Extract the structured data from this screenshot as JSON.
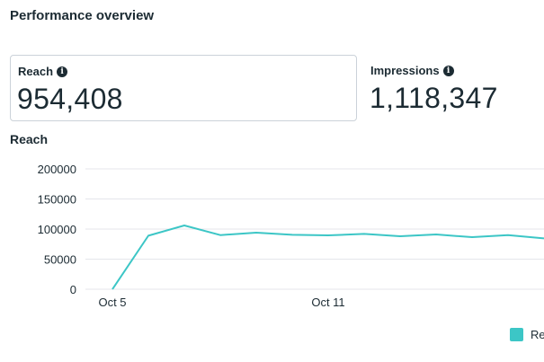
{
  "header": {
    "title": "Performance overview"
  },
  "metrics": [
    {
      "label": "Reach",
      "info_icon": "info-icon",
      "value": "954,408",
      "selected": true
    },
    {
      "label": "Impressions",
      "info_icon": "info-icon",
      "value": "1,118,347",
      "selected": false
    }
  ],
  "chart": {
    "title": "Reach"
  },
  "colors": {
    "series": "#3cc6c6",
    "grid": "#e4e6eb",
    "text": "#1c2b33"
  },
  "chart_data": {
    "type": "line",
    "x": [
      "Oct 5",
      "Oct 6",
      "Oct 7",
      "Oct 8",
      "Oct 9",
      "Oct 10",
      "Oct 11",
      "Oct 12",
      "Oct 13",
      "Oct 14",
      "Oct 15",
      "Oct 16",
      "Oct 17"
    ],
    "x_tick_labels": [
      "Oct 5",
      "Oct 11"
    ],
    "series": [
      {
        "name": "Reach",
        "values": [
          0,
          89000,
          106000,
          90000,
          94000,
          90500,
          89500,
          92000,
          88000,
          91000,
          86500,
          90000,
          84500
        ]
      }
    ],
    "ylim": [
      0,
      200000
    ],
    "y_ticks": [
      0,
      50000,
      100000,
      150000,
      200000
    ],
    "grid": true,
    "legend_position": "bottom-right",
    "title": "Reach",
    "xlabel": "",
    "ylabel": ""
  }
}
